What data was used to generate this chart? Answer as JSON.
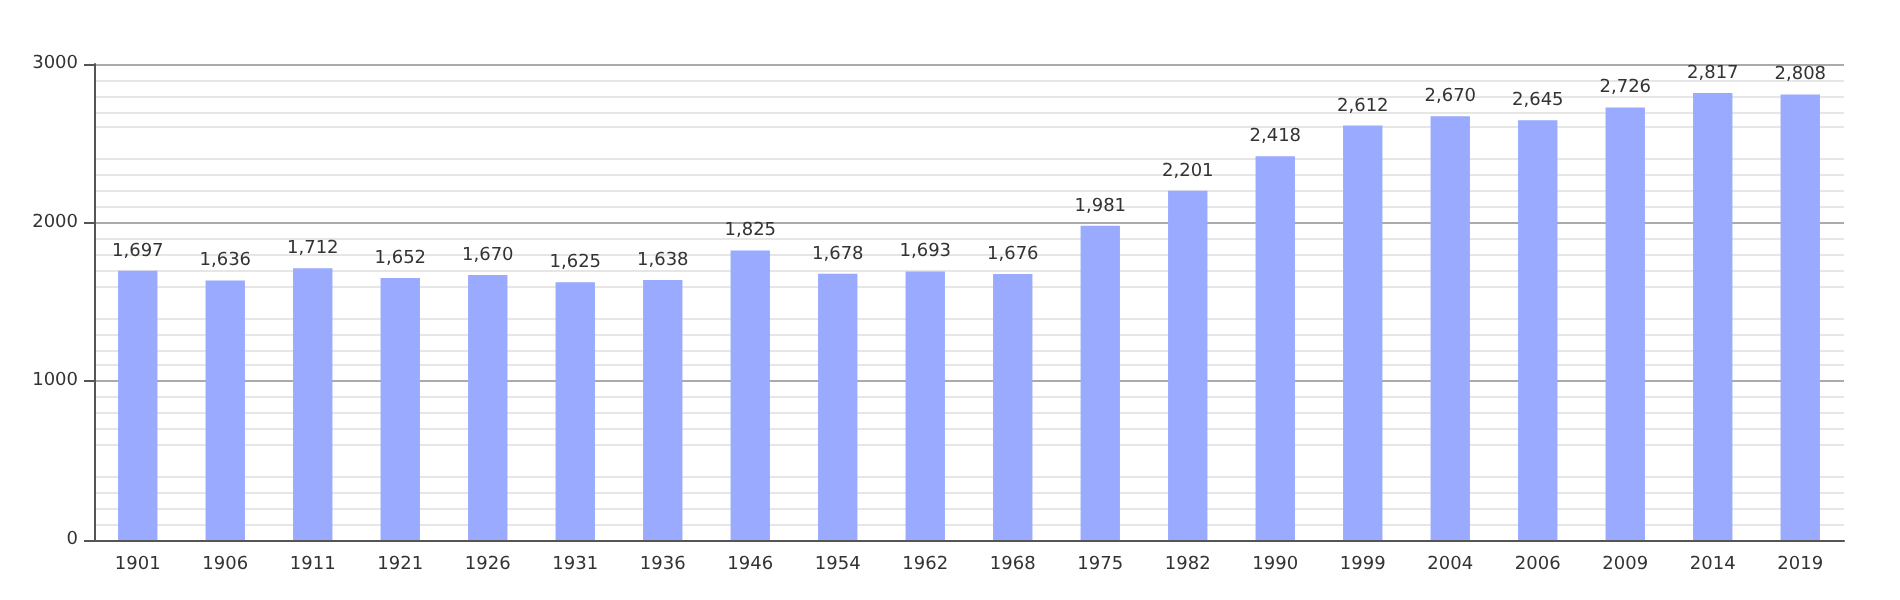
{
  "chart_data": {
    "type": "bar",
    "categories": [
      "1901",
      "1906",
      "1911",
      "1921",
      "1926",
      "1931",
      "1936",
      "1946",
      "1954",
      "1962",
      "1968",
      "1975",
      "1982",
      "1990",
      "1999",
      "2004",
      "2006",
      "2009",
      "2014",
      "2019"
    ],
    "values": [
      1697,
      1636,
      1712,
      1652,
      1670,
      1625,
      1638,
      1825,
      1678,
      1693,
      1676,
      1981,
      2201,
      2418,
      2612,
      2670,
      2645,
      2726,
      2817,
      2808
    ],
    "value_labels": [
      "1,697",
      "1,636",
      "1,712",
      "1,652",
      "1,670",
      "1,625",
      "1,638",
      "1,825",
      "1,678",
      "1,693",
      "1,676",
      "1,981",
      "2,201",
      "2,418",
      "2,612",
      "2,670",
      "2,645",
      "2,726",
      "2,817",
      "2,808"
    ],
    "color": "#99aaff",
    "ylim": [
      0,
      3000
    ],
    "yticks": [
      0,
      1000,
      2000,
      3000
    ],
    "grid": "y"
  }
}
